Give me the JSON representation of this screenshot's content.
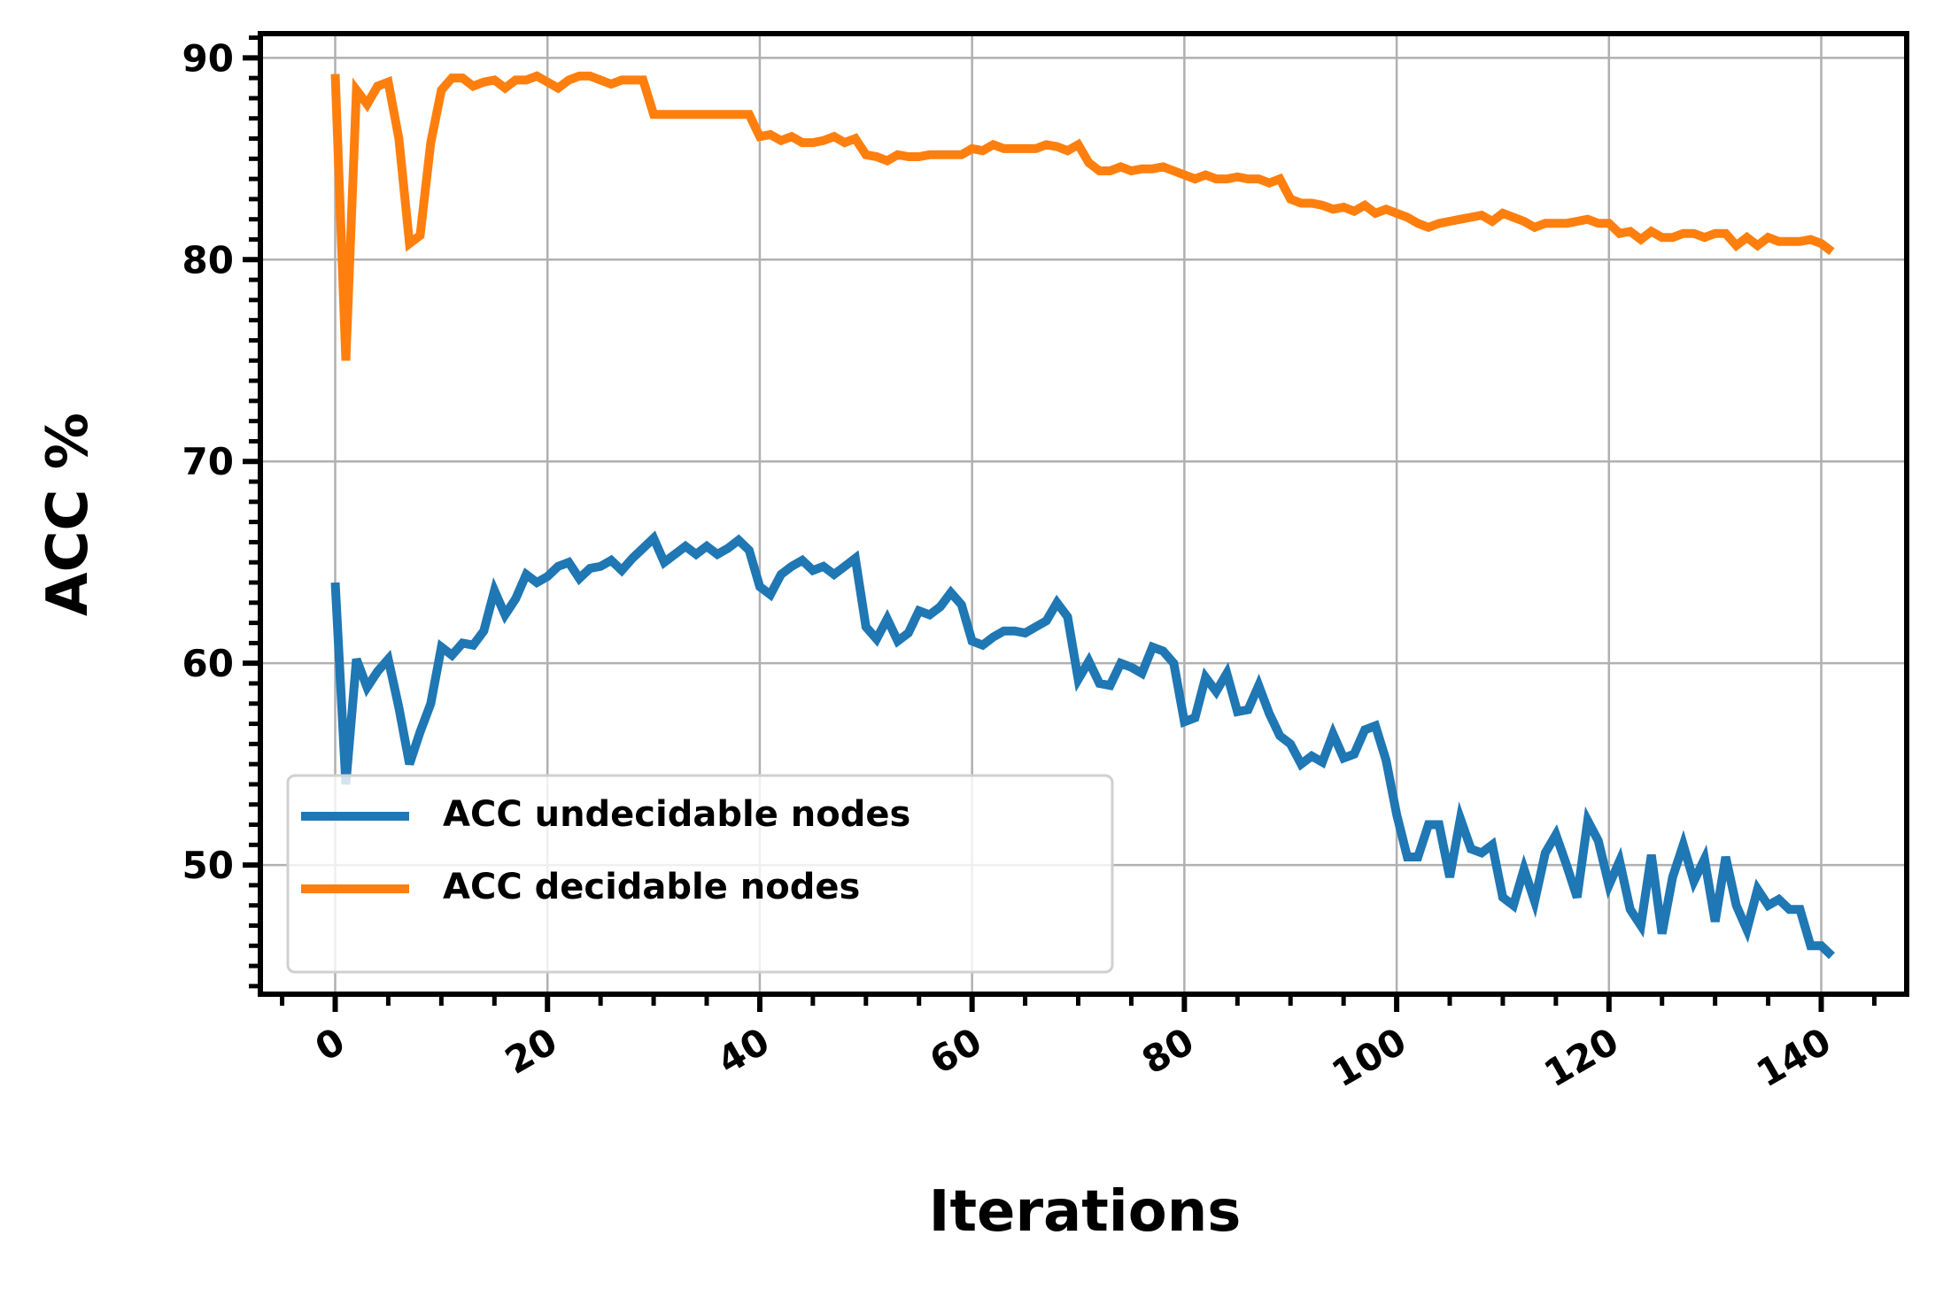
{
  "chart_data": {
    "type": "line",
    "xlabel": "Iterations",
    "ylabel": "ACC %",
    "x": [
      0,
      1,
      2,
      3,
      4,
      5,
      6,
      7,
      8,
      9,
      10,
      11,
      12,
      13,
      14,
      15,
      16,
      17,
      18,
      19,
      20,
      21,
      22,
      23,
      24,
      25,
      26,
      27,
      28,
      29,
      30,
      31,
      32,
      33,
      34,
      35,
      36,
      37,
      38,
      39,
      40,
      41,
      42,
      43,
      44,
      45,
      46,
      47,
      48,
      49,
      50,
      51,
      52,
      53,
      54,
      55,
      56,
      57,
      58,
      59,
      60,
      61,
      62,
      63,
      64,
      65,
      66,
      67,
      68,
      69,
      70,
      71,
      72,
      73,
      74,
      75,
      76,
      77,
      78,
      79,
      80,
      81,
      82,
      83,
      84,
      85,
      86,
      87,
      88,
      89,
      90,
      91,
      92,
      93,
      94,
      95,
      96,
      97,
      98,
      99,
      100,
      101,
      102,
      103,
      104,
      105,
      106,
      107,
      108,
      109,
      110,
      111,
      112,
      113,
      114,
      115,
      116,
      117,
      118,
      119,
      120,
      121,
      122,
      123,
      124,
      125,
      126,
      127,
      128,
      129,
      130,
      131,
      132,
      133,
      134,
      135,
      136,
      137,
      138,
      139,
      140,
      141
    ],
    "series": [
      {
        "name": "ACC undecidable nodes",
        "color": "#1f77b4",
        "values": [
          64.0,
          54.0,
          60.2,
          58.8,
          59.6,
          60.2,
          57.8,
          55.0,
          56.6,
          58.0,
          60.8,
          60.4,
          61.0,
          60.9,
          61.6,
          63.6,
          62.4,
          63.2,
          64.4,
          64.0,
          64.3,
          64.8,
          65.0,
          64.2,
          64.7,
          64.8,
          65.1,
          64.6,
          65.2,
          65.7,
          66.2,
          65.0,
          65.4,
          65.8,
          65.4,
          65.8,
          65.4,
          65.7,
          66.1,
          65.6,
          63.8,
          63.4,
          64.4,
          64.8,
          65.1,
          64.6,
          64.8,
          64.4,
          64.8,
          65.2,
          61.8,
          61.2,
          62.2,
          61.1,
          61.5,
          62.6,
          62.4,
          62.8,
          63.5,
          62.9,
          61.1,
          60.9,
          61.3,
          61.6,
          61.6,
          61.5,
          61.8,
          62.1,
          63.0,
          62.3,
          59.2,
          60.1,
          59.0,
          58.9,
          60.0,
          59.8,
          59.5,
          60.8,
          60.6,
          60.0,
          57.1,
          57.3,
          59.3,
          58.6,
          59.5,
          57.6,
          57.7,
          58.9,
          57.5,
          56.4,
          56.0,
          55.0,
          55.4,
          55.1,
          56.5,
          55.3,
          55.5,
          56.7,
          56.9,
          55.2,
          52.5,
          50.4,
          50.4,
          52.0,
          52.0,
          49.4,
          52.3,
          50.8,
          50.6,
          51.0,
          48.4,
          48.0,
          49.8,
          48.2,
          50.6,
          51.5,
          50.0,
          48.4,
          52.2,
          51.2,
          49.0,
          50.2,
          47.8,
          47.0,
          50.5,
          46.6,
          49.4,
          51.0,
          49.2,
          50.3,
          47.2,
          50.4,
          48.0,
          46.8,
          48.8,
          48.0,
          48.3,
          47.8,
          47.8,
          46.0,
          46.0,
          45.5
        ]
      },
      {
        "name": "ACC decidable nodes",
        "color": "#ff7f0e",
        "values": [
          89.2,
          75.0,
          88.4,
          87.7,
          88.6,
          88.8,
          86.0,
          80.8,
          81.2,
          85.8,
          88.4,
          89.0,
          89.0,
          88.6,
          88.8,
          88.9,
          88.5,
          88.9,
          88.9,
          89.1,
          88.8,
          88.5,
          88.9,
          89.1,
          89.1,
          88.9,
          88.7,
          88.9,
          88.9,
          88.9,
          87.2,
          87.2,
          87.2,
          87.2,
          87.2,
          87.2,
          87.2,
          87.2,
          87.2,
          87.2,
          86.1,
          86.2,
          85.9,
          86.1,
          85.8,
          85.8,
          85.9,
          86.1,
          85.8,
          86.0,
          85.2,
          85.1,
          84.9,
          85.2,
          85.1,
          85.1,
          85.2,
          85.2,
          85.2,
          85.2,
          85.5,
          85.4,
          85.7,
          85.5,
          85.5,
          85.5,
          85.5,
          85.7,
          85.6,
          85.4,
          85.7,
          84.8,
          84.4,
          84.4,
          84.6,
          84.4,
          84.5,
          84.5,
          84.6,
          84.4,
          84.2,
          84.0,
          84.2,
          84.0,
          84.0,
          84.1,
          84.0,
          84.0,
          83.8,
          84.0,
          83.0,
          82.8,
          82.8,
          82.7,
          82.5,
          82.6,
          82.4,
          82.7,
          82.3,
          82.5,
          82.3,
          82.1,
          81.8,
          81.6,
          81.8,
          81.9,
          82.0,
          82.1,
          82.2,
          81.9,
          82.3,
          82.1,
          81.9,
          81.6,
          81.8,
          81.8,
          81.8,
          81.9,
          82.0,
          81.8,
          81.8,
          81.3,
          81.4,
          81.0,
          81.4,
          81.1,
          81.1,
          81.3,
          81.3,
          81.1,
          81.3,
          81.3,
          80.7,
          81.1,
          80.7,
          81.1,
          80.9,
          80.9,
          80.9,
          81.0,
          80.8,
          80.4
        ]
      }
    ],
    "xlim": [
      -7.05,
      148.05
    ],
    "ylim": [
      43.6,
      91.2
    ],
    "xticks": [
      0,
      20,
      40,
      60,
      80,
      100,
      120,
      140
    ],
    "yticks": [
      50,
      60,
      70,
      80,
      90
    ],
    "xminorticks": [
      -5,
      5,
      10,
      15,
      25,
      30,
      35,
      45,
      50,
      55,
      65,
      70,
      75,
      85,
      90,
      95,
      105,
      110,
      115,
      125,
      130,
      135,
      145
    ],
    "yminorticks": [
      44,
      45,
      46,
      47,
      48,
      49,
      51,
      52,
      53,
      54,
      55,
      56,
      57,
      58,
      59,
      61,
      62,
      63,
      64,
      65,
      66,
      67,
      68,
      69,
      71,
      72,
      73,
      74,
      75,
      76,
      77,
      78,
      79,
      81,
      82,
      83,
      84,
      85,
      86,
      87,
      88,
      89,
      91
    ],
    "grid": true,
    "legend": "lower left"
  }
}
